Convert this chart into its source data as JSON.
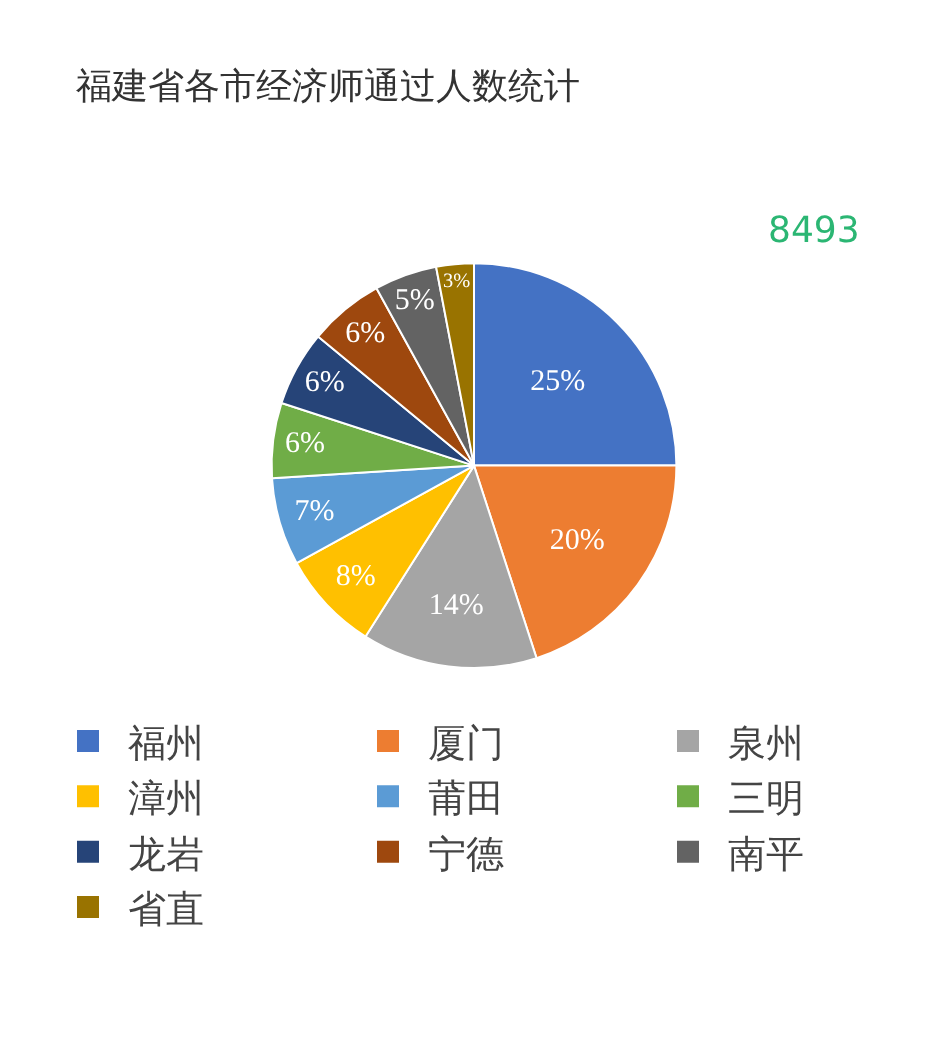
{
  "chart_data": {
    "type": "pie",
    "title": "福建省各市经济师通过人数统计",
    "annotations": [
      "8493"
    ],
    "categories": [
      "福州",
      "厦门",
      "泉州",
      "漳州",
      "莆田",
      "三明",
      "龙岩",
      "宁德",
      "南平",
      "省直"
    ],
    "values": [
      25,
      20,
      14,
      8,
      7,
      6,
      6,
      6,
      5,
      3
    ],
    "value_labels": [
      "25%",
      "20%",
      "14%",
      "8%",
      "7%",
      "6%",
      "6%",
      "6%",
      "5%",
      "3%"
    ],
    "colors": [
      "#4472c4",
      "#ed7d31",
      "#a5a5a5",
      "#ffc000",
      "#5b9bd5",
      "#70ad47",
      "#264478",
      "#9e480e",
      "#636363",
      "#997300"
    ],
    "legend": "bottom"
  }
}
